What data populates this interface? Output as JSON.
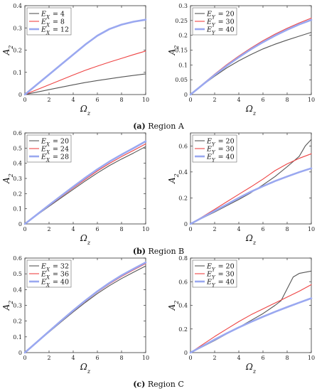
{
  "chart_data": [
    {
      "type": "line",
      "xlabel": "Ω_z",
      "ylabel": "A_2",
      "xlim": [
        0,
        10
      ],
      "ylim": [
        0,
        0.4
      ],
      "xticks": [
        "0",
        "2",
        "4",
        "6",
        "8",
        "10"
      ],
      "yticks": [
        "0",
        "0.1",
        "0.2",
        "0.3",
        "0.4"
      ],
      "legend": "top-left",
      "series": [
        {
          "name": "E_X = 4",
          "color": "#555555",
          "x": [
            0,
            1,
            2,
            3,
            4,
            5,
            6,
            7,
            8,
            9,
            10
          ],
          "y": [
            0,
            0.011,
            0.022,
            0.033,
            0.044,
            0.054,
            0.063,
            0.071,
            0.079,
            0.086,
            0.093
          ]
        },
        {
          "name": "E_X = 8",
          "color": "#ee4444",
          "x": [
            0,
            1,
            2,
            3,
            4,
            5,
            6,
            7,
            8,
            9,
            10
          ],
          "y": [
            0,
            0.022,
            0.044,
            0.066,
            0.088,
            0.109,
            0.128,
            0.146,
            0.163,
            0.18,
            0.196
          ]
        },
        {
          "name": "E_X = 12",
          "color": "#9aa8f0",
          "x": [
            0,
            1,
            2,
            3,
            4,
            5,
            6,
            7,
            8,
            9,
            10
          ],
          "y": [
            0,
            0.045,
            0.09,
            0.135,
            0.18,
            0.225,
            0.265,
            0.295,
            0.315,
            0.328,
            0.337
          ]
        }
      ]
    },
    {
      "type": "line",
      "xlabel": "Ω_z",
      "ylabel": "A_2",
      "xlim": [
        0,
        10
      ],
      "ylim": [
        0,
        0.3
      ],
      "xticks": [
        "0",
        "2",
        "4",
        "6",
        "8",
        "10"
      ],
      "yticks": [
        "0",
        "0.05",
        "0.1",
        "0.15",
        "0.2",
        "0.25",
        "0.3"
      ],
      "legend": "top-left",
      "series": [
        {
          "name": "E_Y = 20",
          "color": "#555555",
          "x": [
            0,
            1,
            2,
            3,
            4,
            5,
            6,
            7,
            8,
            9,
            10
          ],
          "y": [
            0,
            0.032,
            0.062,
            0.09,
            0.114,
            0.135,
            0.154,
            0.17,
            0.184,
            0.197,
            0.21
          ]
        },
        {
          "name": "E_Y = 30",
          "color": "#ee4444",
          "x": [
            0,
            1,
            2,
            3,
            4,
            5,
            6,
            7,
            8,
            9,
            10
          ],
          "y": [
            0,
            0.035,
            0.069,
            0.101,
            0.13,
            0.157,
            0.182,
            0.204,
            0.224,
            0.242,
            0.258
          ]
        },
        {
          "name": "E_Y = 40",
          "color": "#9aa8f0",
          "x": [
            0,
            1,
            2,
            3,
            4,
            5,
            6,
            7,
            8,
            9,
            10
          ],
          "y": [
            0,
            0.033,
            0.066,
            0.097,
            0.126,
            0.153,
            0.177,
            0.199,
            0.219,
            0.237,
            0.252
          ]
        }
      ]
    },
    {
      "type": "line",
      "xlabel": "Ω_z",
      "ylabel": "A_2",
      "xlim": [
        0,
        10
      ],
      "ylim": [
        0,
        0.6
      ],
      "xticks": [
        "0",
        "2",
        "4",
        "6",
        "8",
        "10"
      ],
      "yticks": [
        "0",
        "0.1",
        "0.2",
        "0.3",
        "0.4",
        "0.5",
        "0.6"
      ],
      "legend": "top-left",
      "series": [
        {
          "name": "E_X = 20",
          "color": "#555555",
          "x": [
            0,
            1,
            2,
            3,
            4,
            5,
            6,
            7,
            8,
            9,
            10
          ],
          "y": [
            0,
            0.058,
            0.116,
            0.172,
            0.228,
            0.283,
            0.336,
            0.385,
            0.428,
            0.468,
            0.51
          ]
        },
        {
          "name": "E_X = 24",
          "color": "#ee4444",
          "x": [
            0,
            1,
            2,
            3,
            4,
            5,
            6,
            7,
            8,
            9,
            10
          ],
          "y": [
            0,
            0.06,
            0.12,
            0.179,
            0.237,
            0.294,
            0.349,
            0.399,
            0.444,
            0.485,
            0.528
          ]
        },
        {
          "name": "E_X = 28",
          "color": "#9aa8f0",
          "x": [
            0,
            1,
            2,
            3,
            4,
            5,
            6,
            7,
            8,
            9,
            10
          ],
          "y": [
            0,
            0.062,
            0.124,
            0.185,
            0.245,
            0.304,
            0.36,
            0.411,
            0.457,
            0.5,
            0.545
          ]
        }
      ]
    },
    {
      "type": "line",
      "xlabel": "Ω_z",
      "ylabel": "A_2",
      "xlim": [
        0,
        10
      ],
      "ylim": [
        0,
        0.7
      ],
      "xticks": [
        "0",
        "2",
        "4",
        "6",
        "8",
        "10"
      ],
      "yticks": [
        "0",
        "0.2",
        "0.4",
        "0.6"
      ],
      "legend": "top-left",
      "series": [
        {
          "name": "E_Y = 20",
          "color": "#555555",
          "x": [
            0,
            1,
            2,
            3,
            4,
            5,
            6,
            7,
            8,
            9,
            9.5,
            10
          ],
          "y": [
            0,
            0.046,
            0.092,
            0.14,
            0.188,
            0.24,
            0.3,
            0.365,
            0.44,
            0.52,
            0.6,
            0.65
          ]
        },
        {
          "name": "E_Y = 30",
          "color": "#ee4444",
          "x": [
            0,
            1,
            2,
            3,
            4,
            5,
            6,
            7,
            8,
            9,
            10
          ],
          "y": [
            0,
            0.055,
            0.112,
            0.17,
            0.228,
            0.285,
            0.345,
            0.41,
            0.462,
            0.505,
            0.54
          ]
        },
        {
          "name": "E_Y = 40",
          "color": "#9aa8f0",
          "x": [
            0,
            1,
            2,
            3,
            4,
            5,
            6,
            7,
            8,
            9,
            10
          ],
          "y": [
            0,
            0.05,
            0.1,
            0.15,
            0.2,
            0.248,
            0.29,
            0.33,
            0.365,
            0.398,
            0.428
          ]
        }
      ]
    },
    {
      "type": "line",
      "xlabel": "Ω_z",
      "ylabel": "A_2",
      "xlim": [
        0,
        10
      ],
      "ylim": [
        0,
        0.6
      ],
      "xticks": [
        "0",
        "2",
        "4",
        "6",
        "8",
        "10"
      ],
      "yticks": [
        "0",
        "0.1",
        "0.2",
        "0.3",
        "0.4",
        "0.5",
        "0.6"
      ],
      "legend": "top-left",
      "series": [
        {
          "name": "E_X = 32",
          "color": "#555555",
          "x": [
            0,
            1,
            2,
            3,
            4,
            5,
            6,
            7,
            8,
            9,
            10
          ],
          "y": [
            0,
            0.065,
            0.13,
            0.195,
            0.258,
            0.318,
            0.375,
            0.425,
            0.47,
            0.51,
            0.55
          ]
        },
        {
          "name": "E_X = 36",
          "color": "#ee4444",
          "x": [
            0,
            1,
            2,
            3,
            4,
            5,
            6,
            7,
            8,
            9,
            10
          ],
          "y": [
            0,
            0.066,
            0.133,
            0.199,
            0.263,
            0.325,
            0.384,
            0.436,
            0.483,
            0.525,
            0.565
          ]
        },
        {
          "name": "E_X = 40",
          "color": "#9aa8f0",
          "x": [
            0,
            1,
            2,
            3,
            4,
            5,
            6,
            7,
            8,
            9,
            10
          ],
          "y": [
            0,
            0.067,
            0.135,
            0.202,
            0.267,
            0.33,
            0.389,
            0.442,
            0.49,
            0.532,
            0.572
          ]
        }
      ]
    },
    {
      "type": "line",
      "xlabel": "Ω_z",
      "ylabel": "A_2",
      "xlim": [
        0,
        10
      ],
      "ylim": [
        0,
        0.8
      ],
      "xticks": [
        "0",
        "2",
        "4",
        "6",
        "8",
        "10"
      ],
      "yticks": [
        "0",
        "0.2",
        "0.4",
        "0.6",
        "0.8"
      ],
      "legend": "top-left",
      "series": [
        {
          "name": "E_Y = 20",
          "color": "#555555",
          "x": [
            0,
            1,
            2,
            3,
            4,
            5,
            6,
            7,
            7.5,
            8,
            8.5,
            9,
            10
          ],
          "y": [
            0,
            0.05,
            0.102,
            0.158,
            0.215,
            0.272,
            0.33,
            0.4,
            0.44,
            0.54,
            0.64,
            0.67,
            0.69
          ]
        },
        {
          "name": "E_Y = 30",
          "color": "#ee4444",
          "x": [
            0,
            1,
            2,
            3,
            4,
            5,
            6,
            7,
            8,
            9,
            10
          ],
          "y": [
            0,
            0.068,
            0.136,
            0.2,
            0.262,
            0.32,
            0.37,
            0.42,
            0.47,
            0.52,
            0.575
          ]
        },
        {
          "name": "E_Y = 40",
          "color": "#9aa8f0",
          "x": [
            0,
            1,
            2,
            3,
            4,
            5,
            6,
            7,
            8,
            9,
            10
          ],
          "y": [
            0,
            0.055,
            0.11,
            0.163,
            0.213,
            0.26,
            0.304,
            0.345,
            0.385,
            0.423,
            0.46
          ]
        }
      ]
    }
  ],
  "captions": [
    {
      "label": "(a)",
      "text": "Region A"
    },
    {
      "label": "(b)",
      "text": "Region B"
    },
    {
      "label": "(c)",
      "text": "Region C"
    }
  ],
  "axis_symbols": {
    "y": "A",
    "y_sub": "2",
    "x": "Ω",
    "x_sub": "z"
  }
}
